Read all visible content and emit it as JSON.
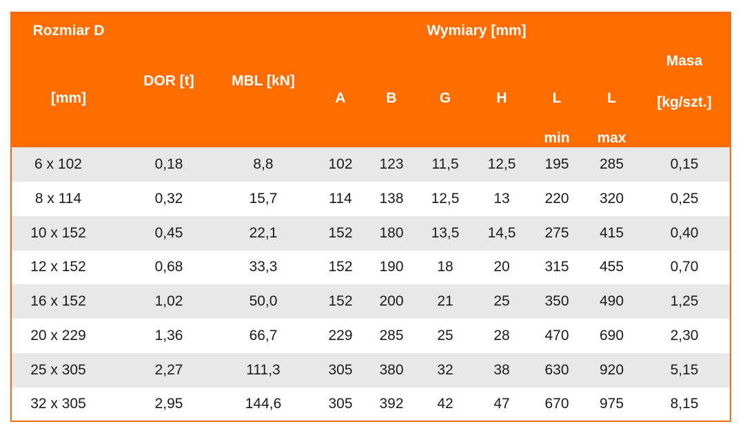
{
  "header": {
    "rozmiar": "Rozmiar D",
    "rozmiar_unit": "[mm]",
    "dor": "DOR [t]",
    "mbl": "MBL [kN]",
    "wymiary": "Wymiary [mm]",
    "cols": [
      "A",
      "B",
      "G",
      "H",
      "L",
      "L"
    ],
    "l_min": "min",
    "l_max": "max",
    "masa": "Masa",
    "masa_unit": "[kg/szt.]"
  },
  "rows": [
    [
      "6 x 102",
      "0,18",
      "8,8",
      "102",
      "123",
      "11,5",
      "12,5",
      "195",
      "285",
      "0,15"
    ],
    [
      "8 x 114",
      "0,32",
      "15,7",
      "114",
      "138",
      "12,5",
      "13",
      "220",
      "320",
      "0,25"
    ],
    [
      "10 x 152",
      "0,45",
      "22,1",
      "152",
      "180",
      "13,5",
      "14,5",
      "275",
      "415",
      "0,40"
    ],
    [
      "12 x 152",
      "0,68",
      "33,3",
      "152",
      "190",
      "18",
      "20",
      "315",
      "455",
      "0,70"
    ],
    [
      "16 x 152",
      "1,02",
      "50,0",
      "152",
      "200",
      "21",
      "25",
      "350",
      "490",
      "1,25"
    ],
    [
      "20 x 229",
      "1,36",
      "66,7",
      "229",
      "285",
      "25",
      "28",
      "470",
      "690",
      "2,30"
    ],
    [
      "25 x 305",
      "2,27",
      "111,3",
      "305",
      "380",
      "32",
      "38",
      "630",
      "920",
      "5,15"
    ],
    [
      "32 x 305",
      "2,95",
      "144,6",
      "305",
      "392",
      "42",
      "47",
      "670",
      "975",
      "8,15"
    ]
  ],
  "colors": {
    "header_bg": "#ff6c00",
    "header_text": "#ffffff",
    "alt_row": "#e8e8e8",
    "border": "#f26b0f"
  }
}
